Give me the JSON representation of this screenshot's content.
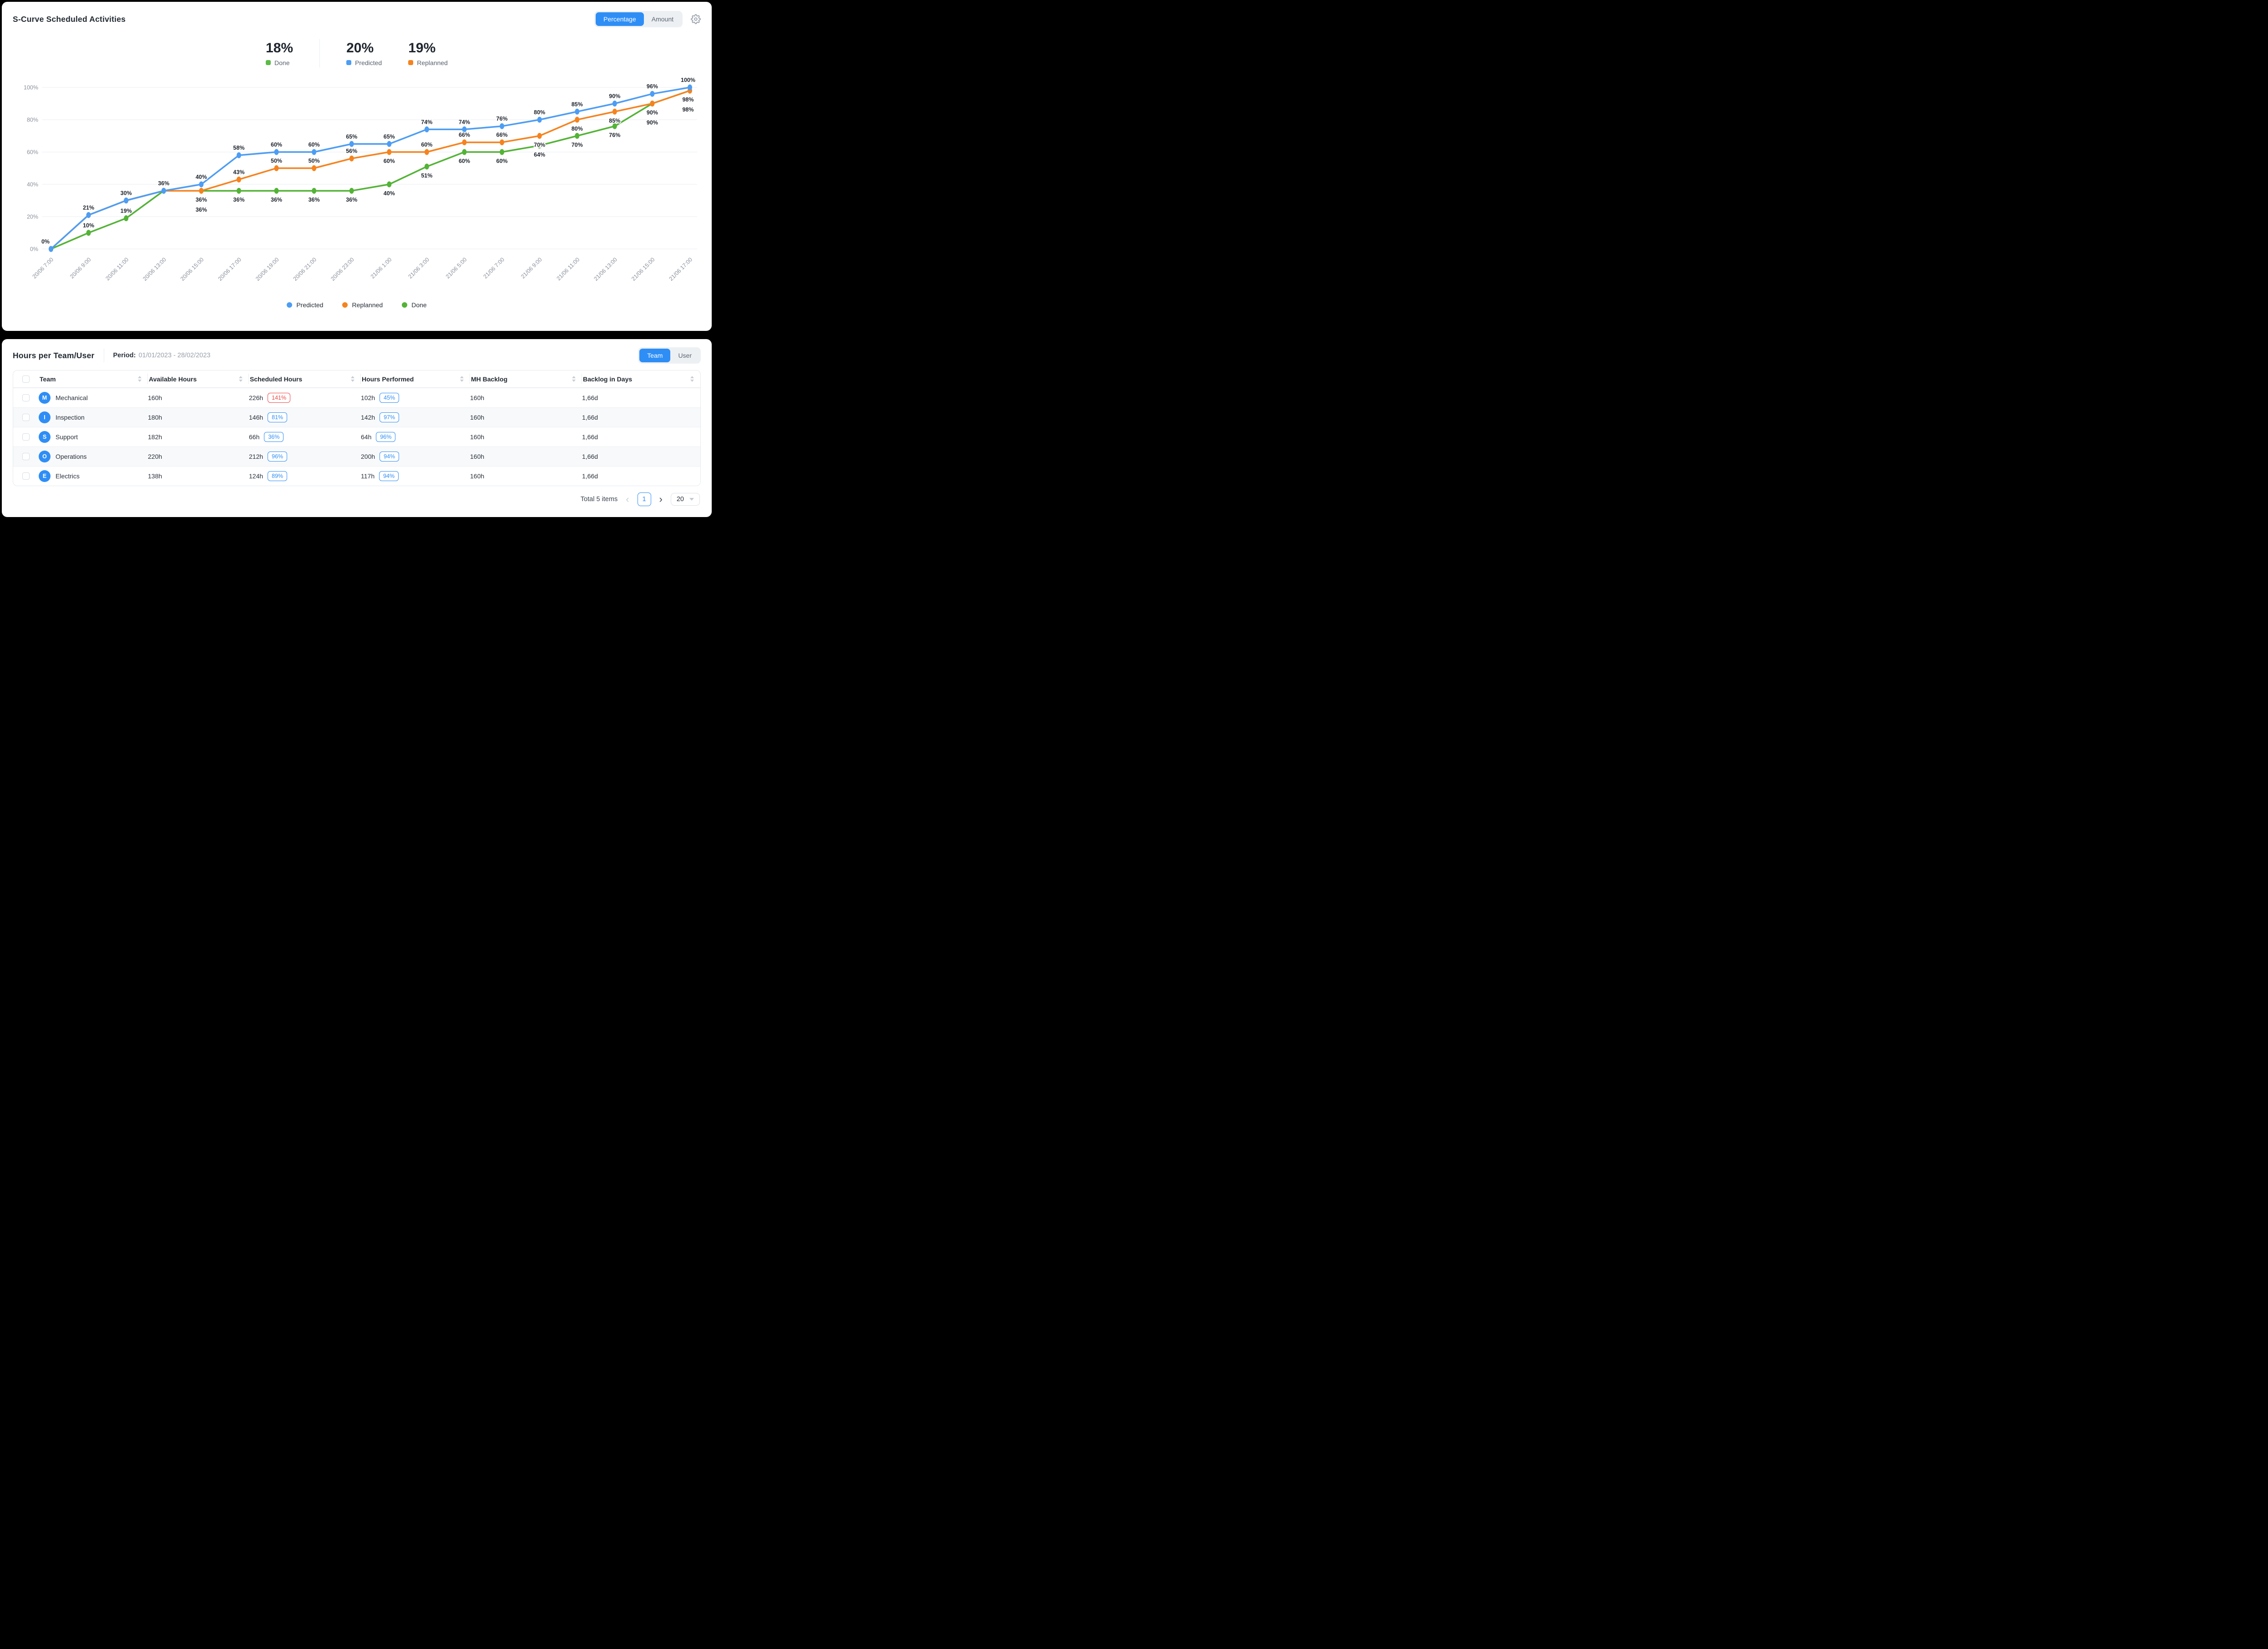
{
  "colors": {
    "accent": "#2E8EF6",
    "danger": "#EF4545"
  },
  "chart_panel": {
    "title": "S-Curve Scheduled Activities",
    "toggle": {
      "options": [
        "Percentage",
        "Amount"
      ],
      "active": "Percentage"
    },
    "stats": [
      {
        "value": "18%",
        "label": "Done",
        "color": "#5CBA49"
      },
      {
        "value": "20%",
        "label": "Predicted",
        "color": "#4D9DF3"
      },
      {
        "value": "19%",
        "label": "Replanned",
        "color": "#F5831F"
      }
    ],
    "legend": [
      "Predicted",
      "Replanned",
      "Done"
    ]
  },
  "chart_data": {
    "type": "line",
    "x": [
      "20/06 7:00",
      "20/06 9:00",
      "20/06 11:00",
      "20/06 13:00",
      "20/06 15:00",
      "20/06 17:00",
      "20/06 19:00",
      "20/06 21:00",
      "20/06 23:00",
      "21/06 1:00",
      "21/06 3:00",
      "21/06 5:00",
      "21/06 7:00",
      "21/06 9:00",
      "21/06 11:00",
      "21/06 13:00",
      "21/06 15:00",
      "21/06 17:00"
    ],
    "series": [
      {
        "name": "Predicted",
        "color": "#4D9DF3",
        "values": [
          0,
          21,
          30,
          36,
          40,
          58,
          60,
          60,
          65,
          65,
          74,
          74,
          76,
          80,
          85,
          90,
          96,
          100
        ]
      },
      {
        "name": "Replanned",
        "color": "#F5831F",
        "values": [
          0,
          21,
          30,
          36,
          36,
          43,
          50,
          50,
          56,
          60,
          60,
          66,
          66,
          70,
          80,
          85,
          90,
          98
        ]
      },
      {
        "name": "Done",
        "color": "#53B336",
        "values": [
          0,
          10,
          19,
          36,
          36,
          36,
          36,
          36,
          36,
          40,
          51,
          60,
          60,
          64,
          70,
          76,
          90,
          98
        ]
      }
    ],
    "y_ticks": [
      "0%",
      "20%",
      "40%",
      "60%",
      "80%",
      "100%"
    ],
    "ylim": [
      0,
      100
    ],
    "grid": true,
    "legend_position": "bottom",
    "data_label_suffix": "%"
  },
  "table_panel": {
    "title": "Hours per Team/User",
    "period_label": "Period:",
    "period_value": "01/01/2023 - 28/02/2023",
    "toggle": {
      "options": [
        "Team",
        "User"
      ],
      "active": "Team"
    },
    "columns": [
      "Team",
      "Available Hours",
      "Scheduled Hours",
      "Hours Performed",
      "MH Backlog",
      "Backlog in Days"
    ],
    "rows": [
      {
        "initial": "M",
        "team": "Mechanical",
        "available": "160h",
        "scheduled": "226h",
        "scheduled_badge": "141%",
        "scheduled_badge_type": "danger",
        "performed": "102h",
        "performed_badge": "45%",
        "mh_backlog": "160h",
        "backlog_days": "1,66d"
      },
      {
        "initial": "I",
        "team": "Inspection",
        "available": "180h",
        "scheduled": "146h",
        "scheduled_badge": "81%",
        "scheduled_badge_type": "info",
        "performed": "142h",
        "performed_badge": "97%",
        "mh_backlog": "160h",
        "backlog_days": "1,66d"
      },
      {
        "initial": "S",
        "team": "Support",
        "available": "182h",
        "scheduled": "66h",
        "scheduled_badge": "36%",
        "scheduled_badge_type": "info",
        "performed": "64h",
        "performed_badge": "96%",
        "mh_backlog": "160h",
        "backlog_days": "1,66d"
      },
      {
        "initial": "O",
        "team": "Operations",
        "available": "220h",
        "scheduled": "212h",
        "scheduled_badge": "96%",
        "scheduled_badge_type": "info",
        "performed": "200h",
        "performed_badge": "94%",
        "mh_backlog": "160h",
        "backlog_days": "1,66d"
      },
      {
        "initial": "E",
        "team": "Electrics",
        "available": "138h",
        "scheduled": "124h",
        "scheduled_badge": "89%",
        "scheduled_badge_type": "info",
        "performed": "117h",
        "performed_badge": "94%",
        "mh_backlog": "160h",
        "backlog_days": "1,66d"
      }
    ],
    "footer": {
      "total": "Total 5 items",
      "page": "1",
      "page_size": "20"
    }
  }
}
